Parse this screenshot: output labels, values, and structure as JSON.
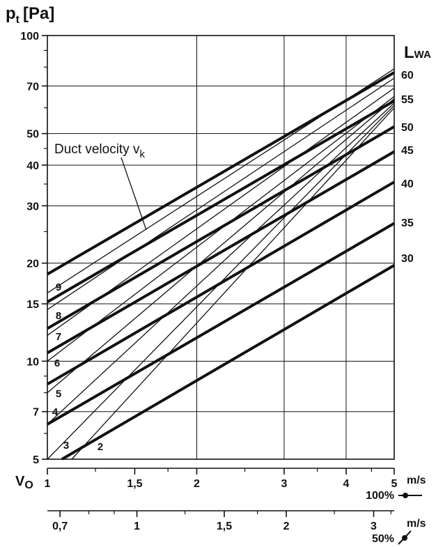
{
  "chart_data": {
    "type": "line",
    "title": "",
    "ylabel": "p",
    "ylabel_sub": "t",
    "ylabel_unit": "[Pa]",
    "xlabel": "V",
    "xlabel_sub": "O",
    "y_scale": "log",
    "x_scale": "log",
    "ylim": [
      5,
      100
    ],
    "xlim": [
      1,
      5
    ],
    "y_major_ticks": [
      5,
      7,
      10,
      15,
      20,
      30,
      40,
      50,
      70,
      100
    ],
    "y_tick_labels": [
      "5",
      "7",
      "10",
      "15",
      "20",
      "30",
      "40",
      "50",
      "70",
      "100"
    ],
    "x_ticks_100": [
      1,
      1.5,
      2,
      3,
      4,
      5
    ],
    "x_tick_labels_100": [
      "1",
      "1,5",
      "2",
      "3",
      "4",
      "5"
    ],
    "x_unit_100": "m/s",
    "x_caption_100": "100%",
    "x_ticks_50": [
      0.7,
      1,
      1.5,
      2,
      3
    ],
    "x_tick_labels_50": [
      "0,7",
      "1",
      "1,5",
      "2",
      "3"
    ],
    "x_unit_50": "m/s",
    "x_caption_50": "50%",
    "lwa_header": "L",
    "lwa_header_sub": "WA",
    "grid": true,
    "annotation": "Duct velocity v",
    "annotation_sub": "k",
    "lwa_series": [
      {
        "name": "60",
        "values": [
          {
            "x": 1,
            "y": 18.5
          },
          {
            "x": 5,
            "y": 77
          }
        ]
      },
      {
        "name": "55",
        "values": [
          {
            "x": 1,
            "y": 15.2
          },
          {
            "x": 5,
            "y": 63
          }
        ]
      },
      {
        "name": "50",
        "values": [
          {
            "x": 1,
            "y": 12.6
          },
          {
            "x": 5,
            "y": 52.5
          }
        ]
      },
      {
        "name": "45",
        "values": [
          {
            "x": 1,
            "y": 10.6
          },
          {
            "x": 5,
            "y": 44
          }
        ]
      },
      {
        "name": "40",
        "values": [
          {
            "x": 1,
            "y": 8.5
          },
          {
            "x": 5,
            "y": 35.5
          }
        ]
      },
      {
        "name": "35",
        "values": [
          {
            "x": 1,
            "y": 6.4
          },
          {
            "x": 5,
            "y": 26.5
          }
        ]
      },
      {
        "name": "30",
        "values": [
          {
            "x": 1.07,
            "y": 5
          },
          {
            "x": 5,
            "y": 19.7
          }
        ]
      }
    ],
    "vk_series": [
      {
        "name": "9",
        "values": [
          {
            "x": 1,
            "y": 16.2
          },
          {
            "x": 5,
            "y": 79
          }
        ]
      },
      {
        "name": "8",
        "values": [
          {
            "x": 1,
            "y": 14.4
          },
          {
            "x": 5,
            "y": 74
          }
        ]
      },
      {
        "name": "7",
        "values": [
          {
            "x": 1,
            "y": 12.0
          },
          {
            "x": 5,
            "y": 69
          }
        ]
      },
      {
        "name": "6",
        "values": [
          {
            "x": 1,
            "y": 10.0
          },
          {
            "x": 5,
            "y": 65
          }
        ]
      },
      {
        "name": "5",
        "values": [
          {
            "x": 1,
            "y": 8.0
          },
          {
            "x": 5,
            "y": 64
          }
        ]
      },
      {
        "name": "4",
        "values": [
          {
            "x": 1,
            "y": 6.4
          },
          {
            "x": 5,
            "y": 62
          }
        ]
      },
      {
        "name": "3",
        "values": [
          {
            "x": 1,
            "y": 5.0
          },
          {
            "x": 5,
            "y": 61
          }
        ]
      },
      {
        "name": "2",
        "values": [
          {
            "x": 1.12,
            "y": 5.0
          },
          {
            "x": 5,
            "y": 60
          }
        ]
      }
    ],
    "vk_labels": [
      "9",
      "8",
      "7",
      "6",
      "5",
      "4",
      "3",
      "2"
    ]
  }
}
